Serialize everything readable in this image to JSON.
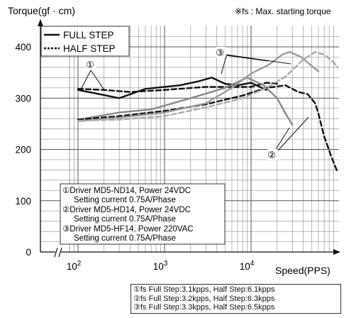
{
  "chart_data": {
    "type": "line",
    "title": "Torque(gf · cm)",
    "note": "※fs : Max. starting torque",
    "xlabel": "Speed(PPS)",
    "ylabel": "Torque(gf · cm)",
    "x_scale": "log",
    "x_ticks": [
      {
        "value": 100,
        "base": "10",
        "exp": "2"
      },
      {
        "value": 1000,
        "base": "10",
        "exp": "3"
      },
      {
        "value": 10000,
        "base": "10",
        "exp": "4"
      }
    ],
    "y_ticks": [
      "0",
      "100",
      "200",
      "300",
      "400"
    ],
    "ylim": [
      0,
      420
    ],
    "grid": true,
    "axis_break": true,
    "legend_position": "top-left",
    "legend": [
      {
        "label": "FULL STEP",
        "style": "solid"
      },
      {
        "label": "HALF STEP",
        "style": "dotted"
      }
    ],
    "driver_lines": [
      "①Driver MD5-ND14, Power 24VDC",
      "Setting current 0.75A/Phase",
      "②Driver MD5-HD14, Power 24VDC",
      "Setting current 0.75A/Phase",
      "③Driver MD5-HF14, Power 220VAC",
      "Setting current 0.75A/Phase"
    ],
    "fs_lines": [
      "①fs Full Step:3.1kpps, Half Step:6.1kpps",
      "②fs Full Step:3.2kpps, Half Step:6.3kpps",
      "③fs Full Step:3.3kpps, Half Step:6.5kpps"
    ],
    "markers": {
      "one": "①",
      "two": "②",
      "three": "③"
    },
    "series": [
      {
        "driver": "①",
        "step": "FULL STEP",
        "color": "#111111",
        "dash": "solid",
        "points": [
          [
            100,
            316
          ],
          [
            200,
            306
          ],
          [
            300,
            300
          ],
          [
            600,
            318
          ],
          [
            1500,
            325
          ],
          [
            2500,
            333
          ],
          [
            3500,
            340
          ],
          [
            5000,
            328
          ],
          [
            7000,
            325
          ],
          [
            10000,
            330
          ],
          [
            15000,
            316
          ]
        ]
      },
      {
        "driver": "①",
        "step": "HALF STEP",
        "color": "#111111",
        "dash": "dashed",
        "points": [
          [
            100,
            318
          ],
          [
            200,
            316
          ],
          [
            400,
            312
          ],
          [
            1000,
            316
          ],
          [
            3000,
            322
          ],
          [
            6000,
            322
          ],
          [
            10000,
            322
          ],
          [
            15000,
            330
          ],
          [
            20000,
            328
          ]
        ]
      },
      {
        "driver": "②",
        "step": "FULL STEP",
        "color": "#888888",
        "dash": "solid",
        "points": [
          [
            100,
            258
          ],
          [
            300,
            272
          ],
          [
            700,
            278
          ],
          [
            2000,
            300
          ],
          [
            5000,
            320
          ],
          [
            9000,
            340
          ],
          [
            14000,
            325
          ],
          [
            20000,
            300
          ],
          [
            25000,
            270
          ],
          [
            30000,
            248
          ]
        ]
      },
      {
        "driver": "②",
        "step": "HALF STEP",
        "color": "#111111",
        "dash": "dashed",
        "points": [
          [
            100,
            258
          ],
          [
            300,
            265
          ],
          [
            1000,
            275
          ],
          [
            3000,
            288
          ],
          [
            8000,
            305
          ],
          [
            15000,
            320
          ],
          [
            25000,
            325
          ],
          [
            35000,
            312
          ],
          [
            45000,
            308
          ],
          [
            55000,
            290
          ],
          [
            60000,
            270
          ],
          [
            70000,
            225
          ],
          [
            85000,
            185
          ],
          [
            100000,
            155
          ]
        ]
      },
      {
        "driver": "③",
        "step": "FULL STEP",
        "color": "#9a9a9a",
        "dash": "solid",
        "points": [
          [
            100,
            255
          ],
          [
            300,
            262
          ],
          [
            1000,
            272
          ],
          [
            3000,
            290
          ],
          [
            6000,
            320
          ],
          [
            10000,
            348
          ],
          [
            16000,
            365
          ],
          [
            23000,
            385
          ],
          [
            28000,
            390
          ],
          [
            38000,
            380
          ],
          [
            60000,
            352
          ]
        ]
      },
      {
        "driver": "③",
        "step": "HALF STEP",
        "color": "#aaaaaa",
        "dash": "dashed",
        "points": [
          [
            100,
            256
          ],
          [
            300,
            258
          ],
          [
            1000,
            265
          ],
          [
            3000,
            282
          ],
          [
            8000,
            300
          ],
          [
            15000,
            320
          ],
          [
            25000,
            342
          ],
          [
            40000,
            375
          ],
          [
            55000,
            390
          ],
          [
            70000,
            385
          ],
          [
            90000,
            370
          ],
          [
            100000,
            360
          ]
        ]
      }
    ]
  }
}
